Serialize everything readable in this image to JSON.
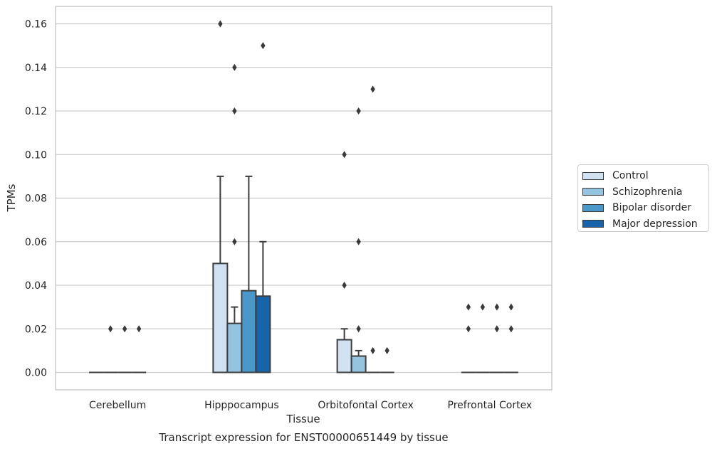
{
  "chart_data": {
    "type": "bar",
    "caption": "Transcript expression for ENST00000651449 by tissue",
    "xlabel": "Tissue",
    "ylabel": "TPMs",
    "ylim": [
      -0.008,
      0.168
    ],
    "yticks": [
      "0.00",
      "0.02",
      "0.04",
      "0.06",
      "0.08",
      "0.10",
      "0.12",
      "0.14",
      "0.16"
    ],
    "ytick_values": [
      0.0,
      0.02,
      0.04,
      0.06,
      0.08,
      0.1,
      0.12,
      0.14,
      0.16
    ],
    "grid": "horizontal",
    "legend_position": "right",
    "categories": [
      "Cerebellum",
      "Hipppocampus",
      "Orbitofontal Cortex",
      "Prefrontal Cortex"
    ],
    "series": [
      {
        "name": "Control",
        "color": "#d0e1f2",
        "values": [
          0.0,
          0.05,
          0.015,
          0.0
        ],
        "error_top": [
          0.0,
          0.09,
          0.02,
          0.0
        ],
        "outliers": [
          [],
          [
            0.16
          ],
          [
            0.04,
            0.1
          ],
          [
            0.02,
            0.03
          ]
        ]
      },
      {
        "name": "Schizophrenia",
        "color": "#94c4df",
        "values": [
          0.0,
          0.0225,
          0.0075,
          0.0
        ],
        "error_top": [
          0.0,
          0.03,
          0.01,
          0.0
        ],
        "outliers": [
          [
            0.02
          ],
          [
            0.06,
            0.12,
            0.14
          ],
          [
            0.02,
            0.06,
            0.12
          ],
          [
            0.03
          ]
        ]
      },
      {
        "name": "Bipolar disorder",
        "color": "#4a98c9",
        "values": [
          0.0,
          0.0375,
          0.0,
          0.0
        ],
        "error_top": [
          0.0,
          0.09,
          0.0,
          0.0
        ],
        "outliers": [
          [
            0.02
          ],
          [],
          [
            0.01,
            0.13
          ],
          [
            0.02,
            0.03
          ]
        ]
      },
      {
        "name": "Major depression",
        "color": "#1764ab",
        "values": [
          0.0,
          0.035,
          0.0,
          0.0
        ],
        "error_top": [
          0.0,
          0.06,
          0.0,
          0.0
        ],
        "outliers": [
          [
            0.02
          ],
          [
            0.15
          ],
          [
            0.01
          ],
          [
            0.02,
            0.03
          ]
        ]
      }
    ]
  }
}
